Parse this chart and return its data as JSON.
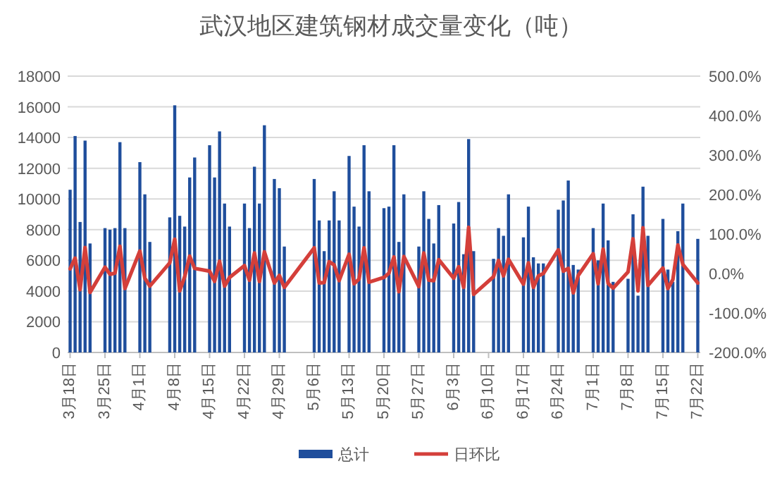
{
  "chart_data": {
    "type": "bar",
    "title": "武汉地区建筑钢材成交量变化（吨）",
    "legend": "bottom",
    "grid": "y",
    "categories": [
      "3月18日",
      null,
      null,
      null,
      null,
      null,
      null,
      "3月25日",
      null,
      null,
      null,
      null,
      null,
      null,
      "4月1日",
      null,
      null,
      null,
      null,
      null,
      null,
      "4月8日",
      null,
      null,
      null,
      null,
      null,
      null,
      "4月15日",
      null,
      null,
      null,
      null,
      null,
      null,
      "4月22日",
      null,
      null,
      null,
      null,
      null,
      null,
      "4月29日",
      null,
      null,
      null,
      null,
      null,
      null,
      "5月6日",
      null,
      null,
      null,
      null,
      null,
      null,
      "5月13日",
      null,
      null,
      null,
      null,
      null,
      null,
      "5月20日",
      null,
      null,
      null,
      null,
      null,
      null,
      "5月27日",
      null,
      null,
      null,
      null,
      null,
      null,
      "6月3日",
      null,
      null,
      null,
      null,
      null,
      null,
      "6月10日",
      null,
      null,
      null,
      null,
      null,
      null,
      "6月17日",
      null,
      null,
      null,
      null,
      null,
      null,
      "6月24日",
      null,
      null,
      null,
      null,
      null,
      null,
      "7月1日",
      null,
      null,
      null,
      null,
      null,
      null,
      "7月8日",
      null,
      null,
      null,
      null,
      null,
      null,
      "7月15日",
      null,
      null,
      null,
      null,
      null,
      null,
      "7月22日"
    ],
    "series": [
      {
        "name": "总计",
        "color": "#1f4e9c",
        "values": [
          10600,
          14100,
          8500,
          13800,
          7100,
          null,
          null,
          8100,
          8000,
          8100,
          13700,
          8100,
          null,
          null,
          12400,
          10300,
          7200,
          null,
          null,
          null,
          8800,
          16100,
          8900,
          8200,
          11400,
          12700,
          null,
          null,
          13500,
          11400,
          14400,
          9700,
          8200,
          null,
          null,
          9700,
          8100,
          12100,
          9700,
          14800,
          null,
          11300,
          10700,
          6900,
          null,
          null,
          null,
          null,
          null,
          11300,
          8600,
          6600,
          8600,
          10500,
          8600,
          null,
          12800,
          9500,
          8200,
          13500,
          10500,
          null,
          null,
          9400,
          9500,
          13500,
          7200,
          10300,
          null,
          null,
          6900,
          10500,
          8700,
          7100,
          9600,
          null,
          null,
          8400,
          9800,
          6400,
          13900,
          6600,
          null,
          null,
          null,
          6100,
          8100,
          7600,
          10300,
          null,
          null,
          7500,
          9500,
          6200,
          5800,
          5800,
          null,
          null,
          9300,
          9900,
          11200,
          5700,
          5400,
          null,
          null,
          8100,
          6000,
          9700,
          7300,
          4600,
          null,
          null,
          4800,
          9000,
          3700,
          10800,
          7600,
          null,
          null,
          8700,
          5400,
          4600,
          7900,
          9700,
          null,
          null,
          7400
        ]
      },
      {
        "name": "日环比",
        "type": "line",
        "axis": "y2",
        "color": "#d43f3a",
        "values": [
          12,
          39,
          -41,
          66,
          -48,
          null,
          null,
          16,
          -2,
          1,
          69,
          -38,
          null,
          null,
          57,
          -12,
          -32,
          null,
          null,
          null,
          27,
          87,
          -44,
          -8,
          44,
          13,
          null,
          null,
          6,
          -20,
          31,
          -32,
          -10,
          null,
          null,
          20,
          -17,
          52,
          -20,
          55,
          null,
          -24,
          -5,
          -35,
          null,
          null,
          null,
          null,
          null,
          65,
          -24,
          -23,
          30,
          22,
          -18,
          null,
          49,
          -26,
          -14,
          65,
          -22,
          null,
          null,
          -10,
          1,
          42,
          -46,
          43,
          null,
          null,
          -33,
          52,
          -17,
          -18,
          35,
          null,
          null,
          -12,
          17,
          -35,
          117,
          -53,
          null,
          null,
          null,
          -8,
          33,
          -6,
          36,
          null,
          null,
          -27,
          27,
          -35,
          -6,
          0,
          null,
          null,
          60,
          6,
          13,
          -49,
          -5,
          null,
          null,
          50,
          -26,
          62,
          -25,
          -37,
          null,
          null,
          4,
          88,
          -44,
          116,
          -30,
          null,
          null,
          14,
          -38,
          -15,
          72,
          23,
          null,
          null,
          -24
        ]
      }
    ],
    "ylim": [
      0,
      18000
    ],
    "yticks": [
      0,
      2000,
      4000,
      6000,
      8000,
      10000,
      12000,
      14000,
      16000,
      18000
    ],
    "y2lim": [
      -200,
      500
    ],
    "y2ticks": [
      {
        "value": -200,
        "label": "-200.0%"
      },
      {
        "value": -100,
        "label": "-100.0%"
      },
      {
        "value": 0,
        "label": "0.0%"
      },
      {
        "value": 100,
        "label": "100.0%"
      },
      {
        "value": 200,
        "label": "200.0%"
      },
      {
        "value": 300,
        "label": "300.0%"
      },
      {
        "value": 400,
        "label": "400.0%"
      },
      {
        "value": 500,
        "label": "500.0%"
      }
    ]
  }
}
